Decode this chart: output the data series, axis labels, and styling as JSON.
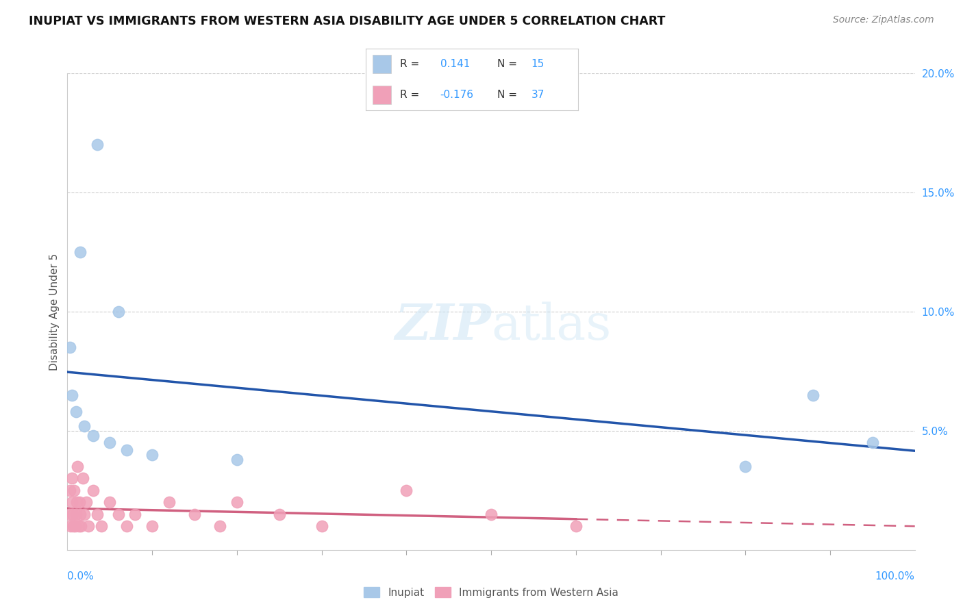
{
  "title": "INUPIAT VS IMMIGRANTS FROM WESTERN ASIA DISABILITY AGE UNDER 5 CORRELATION CHART",
  "source": "Source: ZipAtlas.com",
  "ylabel": "Disability Age Under 5",
  "xlim": [
    0,
    100
  ],
  "ylim": [
    0,
    20
  ],
  "background_color": "#ffffff",
  "grid_color": "#cccccc",
  "inupiat_color": "#A8C8E8",
  "inupiat_line_color": "#2255AA",
  "immigrants_color": "#F0A0B8",
  "immigrants_line_color": "#D06080",
  "R_inupiat": 0.141,
  "N_inupiat": 15,
  "R_immigrants": -0.176,
  "N_immigrants": 37,
  "inupiat_x": [
    0.3,
    0.5,
    1.0,
    2.0,
    3.0,
    5.0,
    7.0,
    10.0,
    20.0,
    80.0,
    88.0,
    95.0,
    1.5,
    3.5,
    6.0
  ],
  "inupiat_y": [
    8.5,
    6.5,
    5.8,
    5.2,
    4.8,
    4.5,
    4.2,
    4.0,
    3.8,
    3.5,
    6.5,
    4.5,
    12.5,
    17.0,
    10.0
  ],
  "immigrants_x": [
    0.2,
    0.3,
    0.4,
    0.5,
    0.5,
    0.6,
    0.7,
    0.8,
    0.9,
    1.0,
    1.1,
    1.2,
    1.3,
    1.4,
    1.5,
    1.6,
    1.8,
    2.0,
    2.2,
    2.5,
    3.0,
    3.5,
    4.0,
    5.0,
    6.0,
    7.0,
    8.0,
    10.0,
    12.0,
    15.0,
    18.0,
    20.0,
    25.0,
    30.0,
    40.0,
    50.0,
    60.0
  ],
  "immigrants_y": [
    1.5,
    2.5,
    1.0,
    3.0,
    2.0,
    1.5,
    1.0,
    2.5,
    1.0,
    1.5,
    2.0,
    3.5,
    1.0,
    2.0,
    1.5,
    1.0,
    3.0,
    1.5,
    2.0,
    1.0,
    2.5,
    1.5,
    1.0,
    2.0,
    1.5,
    1.0,
    1.5,
    1.0,
    2.0,
    1.5,
    1.0,
    2.0,
    1.5,
    1.0,
    2.5,
    1.5,
    1.0
  ]
}
